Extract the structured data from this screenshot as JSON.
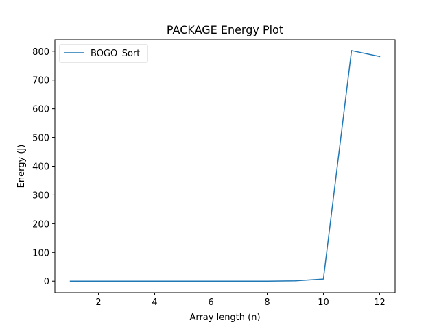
{
  "chart_data": {
    "type": "line",
    "title": "PACKAGE Energy Plot",
    "xlabel": "Array length (n)",
    "ylabel": "Energy (J)",
    "xlim": [
      0.45,
      12.55
    ],
    "ylim": [
      -40,
      840
    ],
    "xticks": [
      2,
      4,
      6,
      8,
      10,
      12
    ],
    "yticks": [
      0,
      100,
      200,
      300,
      400,
      500,
      600,
      700,
      800
    ],
    "grid": false,
    "legend_position": "upper-left",
    "series": [
      {
        "name": "BOGO_Sort",
        "color": "#1f77b4",
        "x": [
          1,
          2,
          3,
          4,
          5,
          6,
          7,
          8,
          9,
          10,
          11,
          12
        ],
        "y": [
          0,
          0,
          0,
          0,
          0,
          0,
          0,
          0,
          1,
          7.5,
          802,
          782
        ]
      }
    ]
  }
}
